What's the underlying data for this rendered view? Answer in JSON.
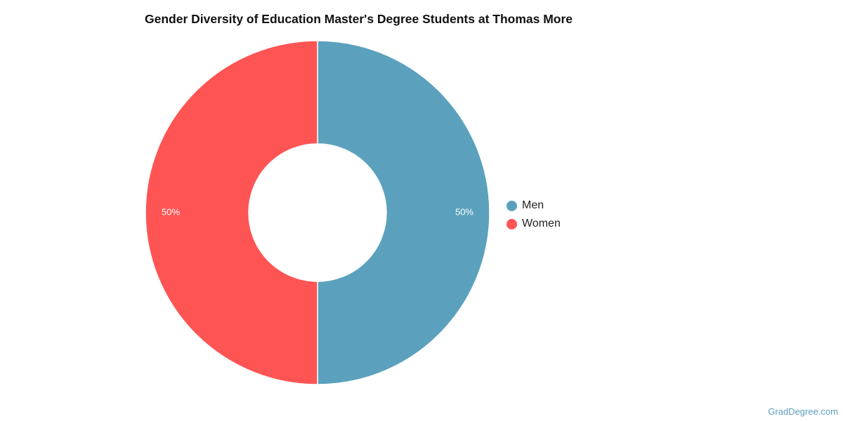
{
  "chart_data": {
    "type": "pie",
    "title": "Gender Diversity of Education Master's Degree Students at Thomas More",
    "donut": true,
    "slices": [
      {
        "label": "Men",
        "value": 50,
        "display": "50%",
        "color": "#5ba1bd"
      },
      {
        "label": "Women",
        "value": 50,
        "display": "50%",
        "color": "#ff5454"
      }
    ],
    "legend_position": "right"
  },
  "watermark": "GradDegree.com"
}
